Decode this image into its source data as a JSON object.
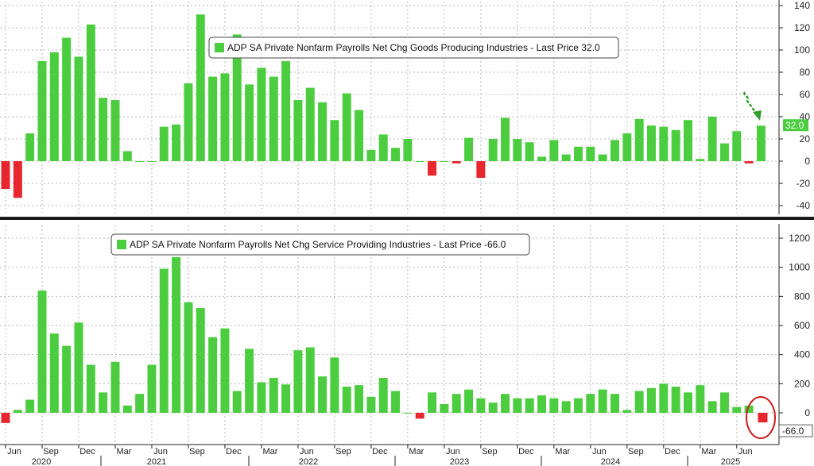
{
  "chart_data": [
    {
      "type": "bar",
      "legend": "ADP SA Private Nonfarm Payrolls Net Chg Goods Producing Industries - Last Price 32.0",
      "last_price_label": "32.0",
      "ylim": [
        -48,
        140
      ],
      "y_ticks": [
        140,
        120,
        100,
        80,
        60,
        40,
        20,
        0,
        -20,
        -40
      ],
      "start_month": "2020-06",
      "values": [
        -25,
        -33,
        25,
        90,
        98,
        111,
        94,
        123,
        57,
        55,
        9,
        0,
        0,
        31,
        33,
        70,
        132,
        76,
        79,
        114,
        69,
        84,
        76,
        90,
        55,
        66,
        53,
        37,
        61,
        46,
        10,
        24,
        12,
        20,
        0,
        -13,
        0,
        -2,
        21,
        -15,
        20,
        39,
        20,
        17,
        4,
        19,
        6,
        13,
        13,
        6,
        19,
        25,
        38,
        32,
        31,
        28,
        37,
        2,
        40,
        16,
        27,
        -2,
        32
      ],
      "positive_color": "#4ccd3f",
      "negative_color": "#e8262e"
    },
    {
      "type": "bar",
      "legend": "ADP SA Private Nonfarm Payrolls Net Chg Service Providing Industries - Last Price -66.0",
      "last_price_label": "-66.0",
      "ylim": [
        -160,
        1290
      ],
      "y_ticks": [
        1200,
        1000,
        800,
        600,
        400,
        200,
        0
      ],
      "start_month": "2020-06",
      "values": [
        -70,
        20,
        90,
        840,
        545,
        460,
        620,
        330,
        140,
        350,
        50,
        130,
        330,
        990,
        1070,
        760,
        720,
        520,
        580,
        150,
        440,
        210,
        240,
        195,
        430,
        450,
        250,
        380,
        180,
        190,
        110,
        240,
        150,
        0,
        -40,
        140,
        60,
        130,
        160,
        100,
        70,
        130,
        100,
        100,
        120,
        100,
        80,
        100,
        130,
        160,
        130,
        20,
        150,
        170,
        200,
        180,
        140,
        190,
        80,
        140,
        40,
        50,
        -66
      ],
      "positive_color": "#4ccd3f",
      "negative_color": "#e8262e"
    }
  ],
  "x_axis": {
    "month_labels": [
      "Jun",
      "Sep",
      "Dec",
      "Mar",
      "Jun",
      "Sep",
      "Dec",
      "Mar",
      "Jun",
      "Sep",
      "Dec",
      "Mar",
      "Jun",
      "Sep",
      "Dec",
      "Mar",
      "Jun",
      "Sep",
      "Dec",
      "Mar",
      "Jun"
    ],
    "year_labels": [
      "2020",
      "2021",
      "2022",
      "2023",
      "2024",
      "2025"
    ]
  },
  "annotations": {
    "arrow_color": "#2f9e2a",
    "circle_color": "#cc1a1a"
  }
}
